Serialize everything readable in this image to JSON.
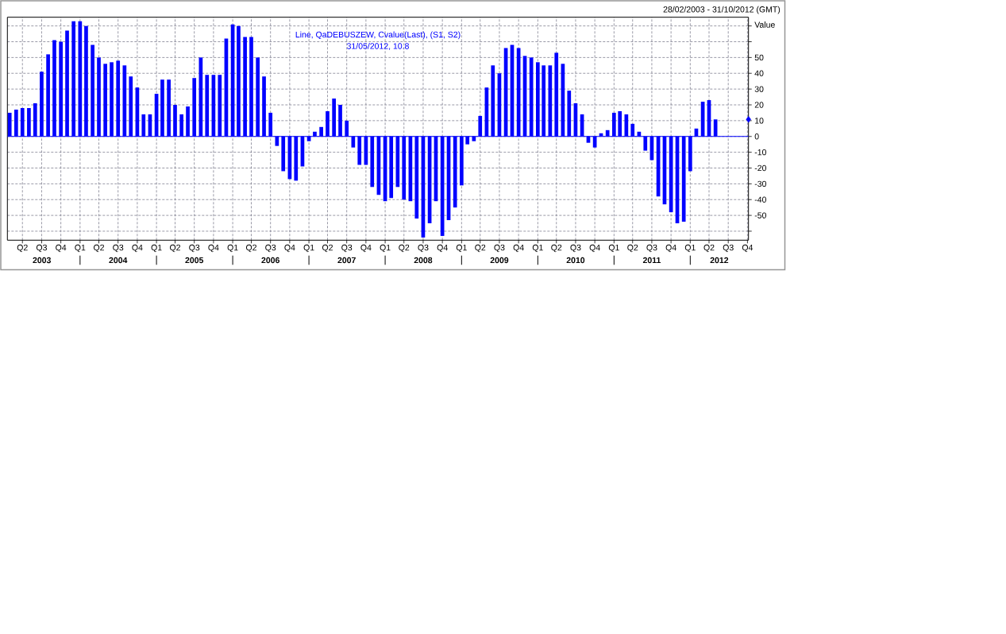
{
  "chart_data": {
    "type": "bar",
    "title": "28/02/2003 - 31/10/2012 (GMT)",
    "ylabel": "Value",
    "x": [
      "2003-02-28",
      "2003-03-31",
      "2003-04-30",
      "2003-05-31",
      "2003-06-30",
      "2003-07-31",
      "2003-08-31",
      "2003-09-30",
      "2003-10-31",
      "2003-11-30",
      "2003-12-31",
      "2004-01-31",
      "2004-02-29",
      "2004-03-31",
      "2004-04-30",
      "2004-05-31",
      "2004-06-30",
      "2004-07-31",
      "2004-08-31",
      "2004-09-30",
      "2004-10-31",
      "2004-11-30",
      "2004-12-31",
      "2005-01-31",
      "2005-02-28",
      "2005-03-31",
      "2005-04-30",
      "2005-05-31",
      "2005-06-30",
      "2005-07-31",
      "2005-08-31",
      "2005-09-30",
      "2005-10-31",
      "2005-11-30",
      "2005-12-31",
      "2006-01-31",
      "2006-02-28",
      "2006-03-31",
      "2006-04-30",
      "2006-05-31",
      "2006-06-30",
      "2006-07-31",
      "2006-08-31",
      "2006-09-30",
      "2006-10-31",
      "2006-11-30",
      "2006-12-31",
      "2007-01-31",
      "2007-02-28",
      "2007-03-31",
      "2007-04-30",
      "2007-05-31",
      "2007-06-30",
      "2007-07-31",
      "2007-08-31",
      "2007-09-30",
      "2007-10-31",
      "2007-11-30",
      "2007-12-31",
      "2008-01-31",
      "2008-02-29",
      "2008-03-31",
      "2008-04-30",
      "2008-05-31",
      "2008-06-30",
      "2008-07-31",
      "2008-08-31",
      "2008-09-30",
      "2008-10-31",
      "2008-11-30",
      "2008-12-31",
      "2009-01-31",
      "2009-02-28",
      "2009-03-31",
      "2009-04-30",
      "2009-05-31",
      "2009-06-30",
      "2009-07-31",
      "2009-08-31",
      "2009-09-30",
      "2009-10-31",
      "2009-11-30",
      "2009-12-31",
      "2010-01-31",
      "2010-02-28",
      "2010-03-31",
      "2010-04-30",
      "2010-05-31",
      "2010-06-30",
      "2010-07-31",
      "2010-08-31",
      "2010-09-30",
      "2010-10-31",
      "2010-11-30",
      "2010-12-31",
      "2011-01-31",
      "2011-02-28",
      "2011-03-31",
      "2011-04-30",
      "2011-05-31",
      "2011-06-30",
      "2011-07-31",
      "2011-08-31",
      "2011-09-30",
      "2011-10-31",
      "2011-11-30",
      "2011-12-31",
      "2012-01-31",
      "2012-02-29",
      "2012-03-31",
      "2012-04-30",
      "2012-05-31"
    ],
    "xlim": [
      "2003-02-17",
      "2012-11-05"
    ],
    "xticks": [
      {
        "value": "2003-04-30",
        "label": "Q2"
      },
      {
        "value": "2003-07-31",
        "label": "Q3"
      },
      {
        "value": "2003-10-31",
        "label": "Q4"
      },
      {
        "value": "2004-01-31",
        "label": "Q1"
      },
      {
        "value": "2004-04-30",
        "label": "Q2"
      },
      {
        "value": "2004-07-31",
        "label": "Q3"
      },
      {
        "value": "2004-10-31",
        "label": "Q4"
      },
      {
        "value": "2005-01-31",
        "label": "Q1"
      },
      {
        "value": "2005-04-30",
        "label": "Q2"
      },
      {
        "value": "2005-07-31",
        "label": "Q3"
      },
      {
        "value": "2005-10-31",
        "label": "Q4"
      },
      {
        "value": "2006-01-31",
        "label": "Q1"
      },
      {
        "value": "2006-04-30",
        "label": "Q2"
      },
      {
        "value": "2006-07-31",
        "label": "Q3"
      },
      {
        "value": "2006-10-31",
        "label": "Q4"
      },
      {
        "value": "2007-01-31",
        "label": "Q1"
      },
      {
        "value": "2007-04-30",
        "label": "Q2"
      },
      {
        "value": "2007-07-31",
        "label": "Q3"
      },
      {
        "value": "2007-10-31",
        "label": "Q4"
      },
      {
        "value": "2008-01-31",
        "label": "Q1"
      },
      {
        "value": "2008-04-30",
        "label": "Q2"
      },
      {
        "value": "2008-07-31",
        "label": "Q3"
      },
      {
        "value": "2008-10-31",
        "label": "Q4"
      },
      {
        "value": "2009-01-31",
        "label": "Q1"
      },
      {
        "value": "2009-04-30",
        "label": "Q2"
      },
      {
        "value": "2009-07-31",
        "label": "Q3"
      },
      {
        "value": "2009-10-31",
        "label": "Q4"
      },
      {
        "value": "2010-01-31",
        "label": "Q1"
      },
      {
        "value": "2010-04-30",
        "label": "Q2"
      },
      {
        "value": "2010-07-31",
        "label": "Q3"
      },
      {
        "value": "2010-10-31",
        "label": "Q4"
      },
      {
        "value": "2011-01-31",
        "label": "Q1"
      },
      {
        "value": "2011-04-30",
        "label": "Q2"
      },
      {
        "value": "2011-07-31",
        "label": "Q3"
      },
      {
        "value": "2011-10-31",
        "label": "Q4"
      },
      {
        "value": "2012-01-31",
        "label": "Q1"
      },
      {
        "value": "2012-04-30",
        "label": "Q2"
      },
      {
        "value": "2012-07-31",
        "label": "Q3"
      },
      {
        "value": "2012-10-31",
        "label": "Q4"
      }
    ],
    "x2lim": [
      "2003-02-17",
      "2012-11-05"
    ],
    "x2ticks": [
      {
        "value": "2003-08-01",
        "label": "2003"
      },
      {
        "value": "2004-01-31",
        "label": null
      },
      {
        "value": "2004-07-31",
        "label": "2004"
      },
      {
        "value": "2005-01-31",
        "label": null
      },
      {
        "value": "2005-07-31",
        "label": "2005"
      },
      {
        "value": "2006-01-31",
        "label": null
      },
      {
        "value": "2006-07-31",
        "label": "2006"
      },
      {
        "value": "2007-01-31",
        "label": null
      },
      {
        "value": "2007-07-31",
        "label": "2007"
      },
      {
        "value": "2008-01-31",
        "label": null
      },
      {
        "value": "2008-07-31",
        "label": "2008"
      },
      {
        "value": "2009-01-31",
        "label": null
      },
      {
        "value": "2009-07-31",
        "label": "2009"
      },
      {
        "value": "2010-01-31",
        "label": null
      },
      {
        "value": "2010-07-31",
        "label": "2010"
      },
      {
        "value": "2011-01-31",
        "label": null
      },
      {
        "value": "2011-07-31",
        "label": "2011"
      },
      {
        "value": "2012-01-31",
        "label": null
      },
      {
        "value": "2012-06-18",
        "label": "2012"
      }
    ],
    "ylim": [
      -65.7,
      75.5
    ],
    "yticks": [
      {
        "value": -60,
        "label": null
      },
      -50,
      -40,
      -30,
      -20,
      -10,
      0,
      10,
      20,
      30,
      40,
      50,
      {
        "value": 60,
        "label": null
      },
      {
        "value": 70,
        "label": null
      }
    ],
    "series": [
      {
        "name": "Line, QaDEBUSZEW, Cvalue(Last), (S1, S2)",
        "color": "#0000ff",
        "values": [
          15,
          17,
          18,
          18,
          21,
          41,
          52,
          61,
          60,
          67,
          73,
          73,
          70,
          58,
          50,
          46,
          47,
          48,
          45,
          38,
          31,
          14,
          14,
          27,
          36,
          36,
          20,
          14,
          19,
          37,
          50,
          39,
          39,
          39,
          62,
          71,
          70,
          63,
          63,
          50,
          38,
          15,
          -6,
          -22,
          -27,
          -28,
          -19,
          -3,
          3,
          6,
          16,
          24,
          20,
          10,
          -7,
          -18,
          -18,
          -32,
          -37,
          -41,
          -39,
          -32,
          -40,
          -41,
          -52,
          -64,
          -55,
          -41,
          -63,
          -53,
          -45,
          -31,
          -5,
          -3,
          13,
          31,
          45,
          40,
          56,
          58,
          56,
          51,
          50,
          47,
          45,
          45,
          53,
          46,
          29,
          21,
          14,
          -4,
          -7,
          2,
          4,
          15,
          16,
          14,
          8,
          3,
          -9,
          -15,
          -38,
          -43,
          -48,
          -55,
          -54,
          -22,
          5,
          22,
          23,
          10.8
        ]
      },
      {
        "type": "scatter",
        "color": "#0000ff",
        "marker": "diamond",
        "x": [
          "2012-11-05"
        ],
        "values": [
          10.8
        ]
      }
    ],
    "ref_lines": [
      {
        "axis": "y",
        "value": 0,
        "color": "#0000ff"
      }
    ],
    "annotations": [
      "31/05/2012, 10.8"
    ],
    "grid": true,
    "legend": "top"
  }
}
